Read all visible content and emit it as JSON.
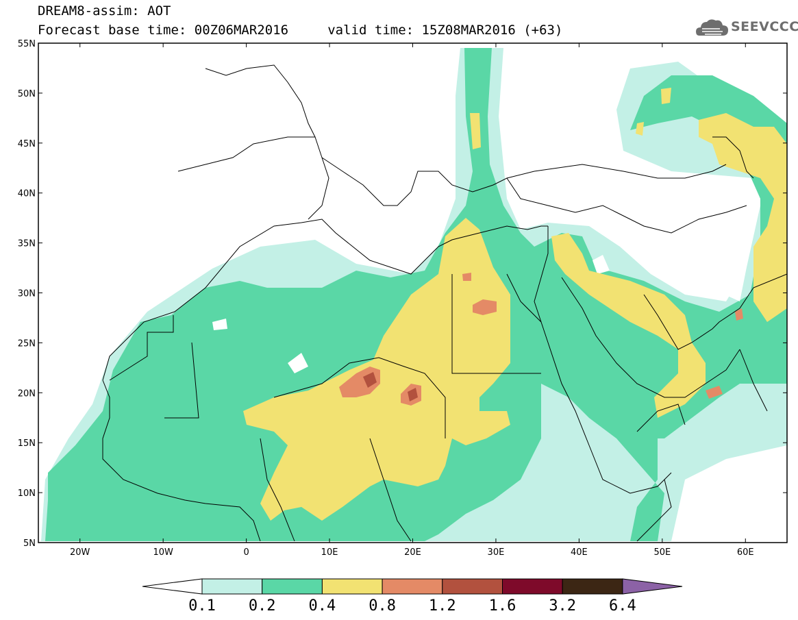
{
  "header": {
    "title_line1": "DREAM8-assim: AOT",
    "title_line2": "Forecast base time: 00Z06MAR2016     valid time: 15Z08MAR2016 (+63)"
  },
  "logo": {
    "text": "SEEVCCC",
    "icon": "cloud-icon"
  },
  "map": {
    "lon_range": [
      -25,
      65
    ],
    "lat_range": [
      5,
      55
    ],
    "x_ticks": [
      {
        "value": -20,
        "label": "20W"
      },
      {
        "value": -10,
        "label": "10W"
      },
      {
        "value": 0,
        "label": "0"
      },
      {
        "value": 10,
        "label": "10E"
      },
      {
        "value": 20,
        "label": "20E"
      },
      {
        "value": 30,
        "label": "30E"
      },
      {
        "value": 40,
        "label": "40E"
      },
      {
        "value": 50,
        "label": "50E"
      },
      {
        "value": 60,
        "label": "60E"
      }
    ],
    "y_ticks": [
      {
        "value": 5,
        "label": "5N"
      },
      {
        "value": 10,
        "label": "10N"
      },
      {
        "value": 15,
        "label": "15N"
      },
      {
        "value": 20,
        "label": "20N"
      },
      {
        "value": 25,
        "label": "25N"
      },
      {
        "value": 30,
        "label": "30N"
      },
      {
        "value": 35,
        "label": "35N"
      },
      {
        "value": 40,
        "label": "40N"
      },
      {
        "value": 45,
        "label": "45N"
      },
      {
        "value": 50,
        "label": "50N"
      },
      {
        "value": 55,
        "label": "55N"
      }
    ]
  },
  "colorbar": {
    "levels": [
      "0.1",
      "0.2",
      "0.4",
      "0.8",
      "1.2",
      "1.6",
      "3.2",
      "6.4"
    ],
    "colors": [
      "#c3f0e6",
      "#5ad7a6",
      "#f2e272",
      "#e48a66",
      "#b2513e",
      "#7e0a2a",
      "#3c2614"
    ],
    "low_extend_color": "#ffffff",
    "high_extend_color": "#8c62a6"
  }
}
